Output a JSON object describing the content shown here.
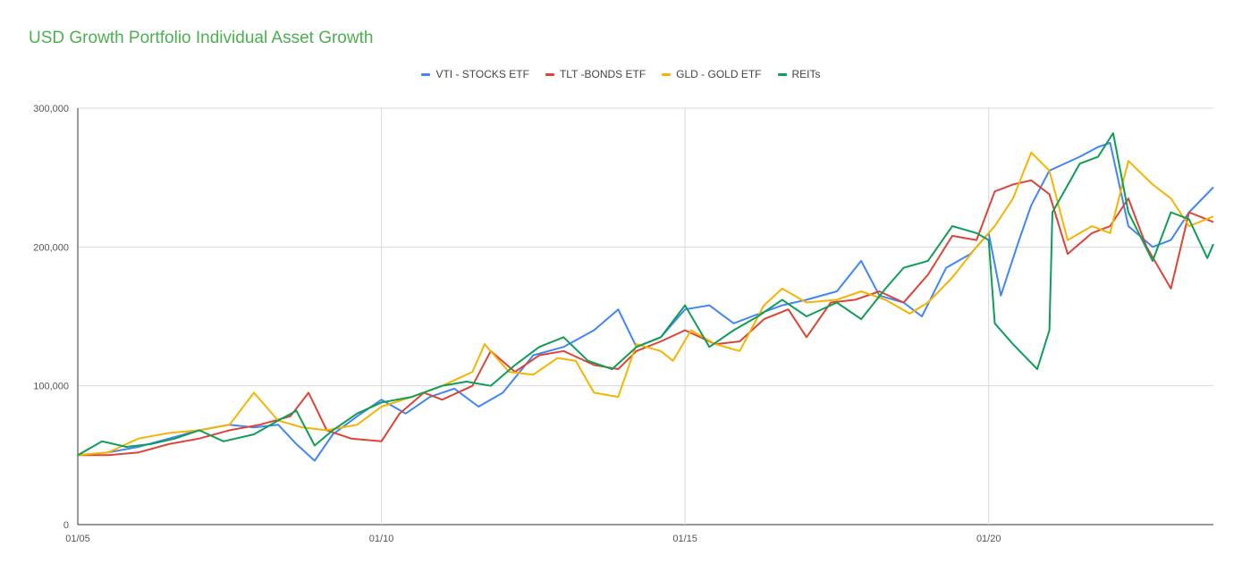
{
  "chart_data": {
    "type": "line",
    "title": "USD Growth Portfolio Individual Asset Growth",
    "xlabel": "",
    "ylabel": "",
    "ylim": [
      0,
      300000
    ],
    "yticks": [
      {
        "v": 0,
        "label": "0"
      },
      {
        "v": 100000,
        "label": "100,000"
      },
      {
        "v": 200000,
        "label": "200,000"
      },
      {
        "v": 300000,
        "label": "300,000"
      }
    ],
    "xlim": [
      2005,
      2023.7
    ],
    "xticks": [
      {
        "v": 2005,
        "label": "01/05"
      },
      {
        "v": 2010,
        "label": "01/10"
      },
      {
        "v": 2015,
        "label": "01/15"
      },
      {
        "v": 2020,
        "label": "01/20"
      }
    ],
    "grid": true,
    "legend": "top-center",
    "series": [
      {
        "name": "VTI - STOCKS ETF",
        "color": "#4285f4",
        "points": [
          [
            2005,
            50000
          ],
          [
            2005.5,
            52000
          ],
          [
            2006,
            56000
          ],
          [
            2006.5,
            62000
          ],
          [
            2007,
            68000
          ],
          [
            2007.5,
            72000
          ],
          [
            2007.9,
            70000
          ],
          [
            2008.3,
            72000
          ],
          [
            2008.6,
            58000
          ],
          [
            2008.9,
            46000
          ],
          [
            2009.2,
            65000
          ],
          [
            2009.6,
            78000
          ],
          [
            2010,
            90000
          ],
          [
            2010.4,
            80000
          ],
          [
            2010.8,
            92000
          ],
          [
            2011.2,
            98000
          ],
          [
            2011.6,
            85000
          ],
          [
            2012,
            95000
          ],
          [
            2012.5,
            122000
          ],
          [
            2013,
            128000
          ],
          [
            2013.5,
            140000
          ],
          [
            2013.9,
            155000
          ],
          [
            2014.2,
            128000
          ],
          [
            2014.6,
            135000
          ],
          [
            2015,
            155000
          ],
          [
            2015.4,
            158000
          ],
          [
            2015.8,
            145000
          ],
          [
            2016.1,
            150000
          ],
          [
            2016.6,
            158000
          ],
          [
            2017,
            162000
          ],
          [
            2017.5,
            168000
          ],
          [
            2017.9,
            190000
          ],
          [
            2018.2,
            165000
          ],
          [
            2018.6,
            160000
          ],
          [
            2018.9,
            150000
          ],
          [
            2019.3,
            185000
          ],
          [
            2019.7,
            195000
          ],
          [
            2020,
            210000
          ],
          [
            2020.2,
            165000
          ],
          [
            2020.5,
            205000
          ],
          [
            2020.7,
            230000
          ],
          [
            2021,
            255000
          ],
          [
            2021.5,
            265000
          ],
          [
            2021.8,
            272000
          ],
          [
            2022,
            275000
          ],
          [
            2022.3,
            215000
          ],
          [
            2022.7,
            200000
          ],
          [
            2023,
            205000
          ],
          [
            2023.3,
            225000
          ],
          [
            2023.7,
            243000
          ]
        ]
      },
      {
        "name": "TLT -BONDS ETF",
        "color": "#db4437",
        "points": [
          [
            2005,
            50000
          ],
          [
            2005.5,
            50000
          ],
          [
            2006,
            52000
          ],
          [
            2006.5,
            58000
          ],
          [
            2007,
            62000
          ],
          [
            2007.5,
            68000
          ],
          [
            2008,
            72000
          ],
          [
            2008.5,
            78000
          ],
          [
            2008.8,
            95000
          ],
          [
            2009.1,
            68000
          ],
          [
            2009.5,
            62000
          ],
          [
            2010,
            60000
          ],
          [
            2010.3,
            80000
          ],
          [
            2010.7,
            95000
          ],
          [
            2011,
            90000
          ],
          [
            2011.5,
            100000
          ],
          [
            2011.8,
            125000
          ],
          [
            2012.2,
            110000
          ],
          [
            2012.6,
            122000
          ],
          [
            2013,
            125000
          ],
          [
            2013.5,
            115000
          ],
          [
            2013.9,
            112000
          ],
          [
            2014.2,
            125000
          ],
          [
            2014.6,
            132000
          ],
          [
            2015,
            140000
          ],
          [
            2015.5,
            130000
          ],
          [
            2015.9,
            132000
          ],
          [
            2016.3,
            148000
          ],
          [
            2016.7,
            155000
          ],
          [
            2017,
            135000
          ],
          [
            2017.4,
            160000
          ],
          [
            2017.8,
            162000
          ],
          [
            2018.2,
            168000
          ],
          [
            2018.6,
            160000
          ],
          [
            2019,
            180000
          ],
          [
            2019.4,
            208000
          ],
          [
            2019.8,
            205000
          ],
          [
            2020.1,
            240000
          ],
          [
            2020.4,
            245000
          ],
          [
            2020.7,
            248000
          ],
          [
            2021,
            238000
          ],
          [
            2021.3,
            195000
          ],
          [
            2021.7,
            210000
          ],
          [
            2022,
            215000
          ],
          [
            2022.3,
            235000
          ],
          [
            2022.6,
            200000
          ],
          [
            2023,
            170000
          ],
          [
            2023.3,
            225000
          ],
          [
            2023.7,
            218000
          ]
        ]
      },
      {
        "name": "GLD - GOLD ETF",
        "color": "#f4b400",
        "points": [
          [
            2005,
            50000
          ],
          [
            2005.5,
            52000
          ],
          [
            2006,
            62000
          ],
          [
            2006.5,
            66000
          ],
          [
            2007,
            68000
          ],
          [
            2007.5,
            72000
          ],
          [
            2007.9,
            95000
          ],
          [
            2008.3,
            75000
          ],
          [
            2008.7,
            70000
          ],
          [
            2009.1,
            68000
          ],
          [
            2009.6,
            72000
          ],
          [
            2010,
            85000
          ],
          [
            2010.5,
            92000
          ],
          [
            2011,
            100000
          ],
          [
            2011.5,
            110000
          ],
          [
            2011.7,
            130000
          ],
          [
            2012.1,
            110000
          ],
          [
            2012.5,
            108000
          ],
          [
            2012.9,
            120000
          ],
          [
            2013.2,
            118000
          ],
          [
            2013.5,
            95000
          ],
          [
            2013.9,
            92000
          ],
          [
            2014.2,
            130000
          ],
          [
            2014.6,
            125000
          ],
          [
            2014.8,
            118000
          ],
          [
            2015.1,
            140000
          ],
          [
            2015.5,
            130000
          ],
          [
            2015.9,
            125000
          ],
          [
            2016.3,
            158000
          ],
          [
            2016.6,
            170000
          ],
          [
            2017,
            160000
          ],
          [
            2017.5,
            162000
          ],
          [
            2017.9,
            168000
          ],
          [
            2018.3,
            162000
          ],
          [
            2018.7,
            152000
          ],
          [
            2019,
            160000
          ],
          [
            2019.4,
            178000
          ],
          [
            2019.8,
            200000
          ],
          [
            2020.1,
            215000
          ],
          [
            2020.4,
            235000
          ],
          [
            2020.7,
            268000
          ],
          [
            2021,
            255000
          ],
          [
            2021.3,
            205000
          ],
          [
            2021.7,
            215000
          ],
          [
            2022,
            210000
          ],
          [
            2022.3,
            262000
          ],
          [
            2022.7,
            245000
          ],
          [
            2023,
            235000
          ],
          [
            2023.3,
            215000
          ],
          [
            2023.7,
            222000
          ]
        ]
      },
      {
        "name": "REITs",
        "color": "#0f9d58",
        "points": [
          [
            2005,
            50000
          ],
          [
            2005.4,
            60000
          ],
          [
            2005.8,
            56000
          ],
          [
            2006.2,
            58000
          ],
          [
            2006.6,
            62000
          ],
          [
            2007,
            68000
          ],
          [
            2007.4,
            60000
          ],
          [
            2007.9,
            65000
          ],
          [
            2008.3,
            75000
          ],
          [
            2008.6,
            82000
          ],
          [
            2008.9,
            57000
          ],
          [
            2009.2,
            68000
          ],
          [
            2009.6,
            80000
          ],
          [
            2010,
            88000
          ],
          [
            2010.5,
            92000
          ],
          [
            2011,
            100000
          ],
          [
            2011.4,
            103000
          ],
          [
            2011.8,
            100000
          ],
          [
            2012.2,
            115000
          ],
          [
            2012.6,
            128000
          ],
          [
            2013,
            135000
          ],
          [
            2013.4,
            118000
          ],
          [
            2013.8,
            112000
          ],
          [
            2014.2,
            128000
          ],
          [
            2014.6,
            135000
          ],
          [
            2015,
            158000
          ],
          [
            2015.4,
            128000
          ],
          [
            2015.8,
            140000
          ],
          [
            2016.2,
            150000
          ],
          [
            2016.6,
            162000
          ],
          [
            2017,
            150000
          ],
          [
            2017.5,
            160000
          ],
          [
            2017.9,
            148000
          ],
          [
            2018.3,
            170000
          ],
          [
            2018.6,
            185000
          ],
          [
            2019,
            190000
          ],
          [
            2019.4,
            215000
          ],
          [
            2019.8,
            210000
          ],
          [
            2020,
            205000
          ],
          [
            2020.1,
            145000
          ],
          [
            2020.4,
            130000
          ],
          [
            2020.8,
            112000
          ],
          [
            2021,
            140000
          ],
          [
            2021.05,
            225000
          ],
          [
            2021.5,
            260000
          ],
          [
            2021.8,
            265000
          ],
          [
            2022.05,
            282000
          ],
          [
            2022.3,
            225000
          ],
          [
            2022.7,
            190000
          ],
          [
            2023,
            225000
          ],
          [
            2023.3,
            220000
          ],
          [
            2023.6,
            192000
          ],
          [
            2023.7,
            202000
          ]
        ]
      }
    ]
  }
}
